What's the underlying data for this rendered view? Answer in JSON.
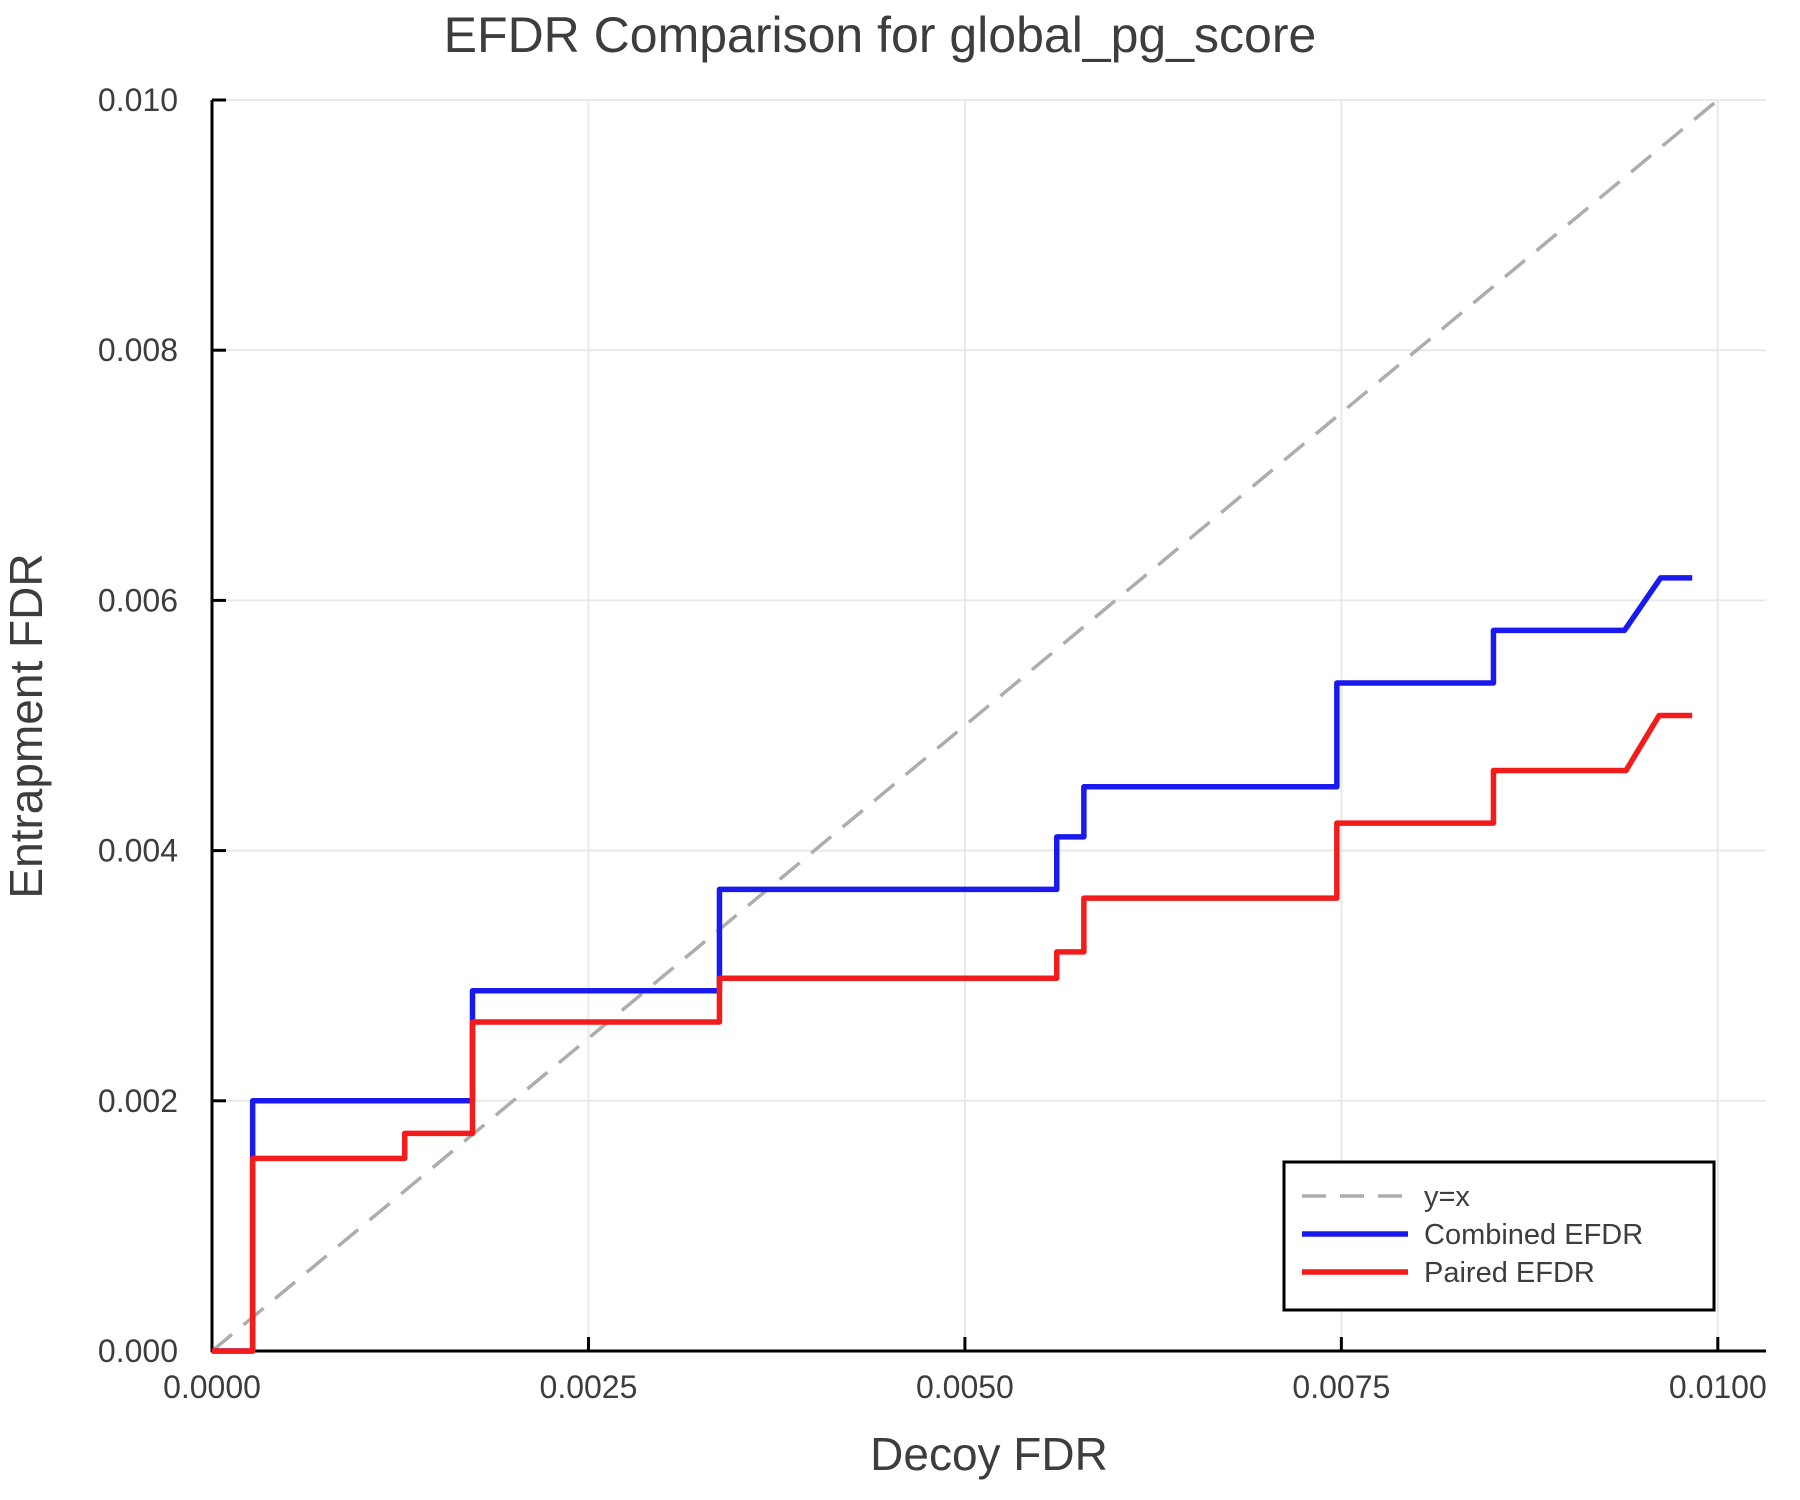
{
  "figure": {
    "background": "#FFFFFF",
    "text_color": "#3D3D3D",
    "grid_color": "#E9E9E9",
    "spine_color": "#000000"
  },
  "chart_data": {
    "type": "line",
    "title": "EFDR Comparison for global_pg_score",
    "xlabel": "Decoy FDR",
    "ylabel": "Entrapment FDR",
    "xlim": [
      0,
      0.01032
    ],
    "ylim": [
      0,
      0.01
    ],
    "grid": true,
    "x_ticks": {
      "values": [
        0,
        0.0025,
        0.005,
        0.0075,
        0.01
      ],
      "labels": [
        "0.0000",
        "0.0025",
        "0.0050",
        "0.0075",
        "0.0100"
      ]
    },
    "y_ticks": {
      "values": [
        0,
        0.002,
        0.004,
        0.006,
        0.008,
        0.01
      ],
      "labels": [
        "0.000",
        "0.002",
        "0.004",
        "0.006",
        "0.008",
        "0.010"
      ]
    },
    "legend": {
      "position": "lower right",
      "entries": [
        "y=x",
        "Combined EFDR",
        "Paired EFDR"
      ]
    },
    "series": [
      {
        "name": "y=x",
        "color": "#ADADAD",
        "style": "dashed",
        "width": 3.5,
        "x": [
          0,
          0.01
        ],
        "y": [
          0,
          0.01
        ]
      },
      {
        "name": "Combined EFDR",
        "color": "#1A1AEE",
        "style": "solid",
        "width": 5.5,
        "x": [
          0,
          0.00027,
          0.00027,
          0.00173,
          0.00173,
          0.00337,
          0.00337,
          0.00561,
          0.00561,
          0.00579,
          0.00579,
          0.00747,
          0.00747,
          0.00851,
          0.00851,
          0.00938,
          0.00962,
          0.00983
        ],
        "y": [
          0,
          0,
          0.002,
          0.002,
          0.00288,
          0.00288,
          0.00369,
          0.00369,
          0.00411,
          0.00411,
          0.00451,
          0.00451,
          0.00534,
          0.00534,
          0.00576,
          0.00576,
          0.00618,
          0.00618
        ]
      },
      {
        "name": "Paired EFDR",
        "color": "#F21C1C",
        "style": "solid",
        "width": 5.5,
        "x": [
          0,
          0.00027,
          0.00027,
          0.00128,
          0.00128,
          0.00173,
          0.00173,
          0.00337,
          0.00337,
          0.00561,
          0.00561,
          0.00579,
          0.00579,
          0.00747,
          0.00747,
          0.00851,
          0.00851,
          0.00939,
          0.00961,
          0.00983
        ],
        "y": [
          0,
          0,
          0.00154,
          0.00154,
          0.00174,
          0.00174,
          0.00263,
          0.00263,
          0.00298,
          0.00298,
          0.00319,
          0.00319,
          0.00362,
          0.00362,
          0.00422,
          0.00422,
          0.00464,
          0.00464,
          0.00508,
          0.00508
        ]
      }
    ]
  }
}
